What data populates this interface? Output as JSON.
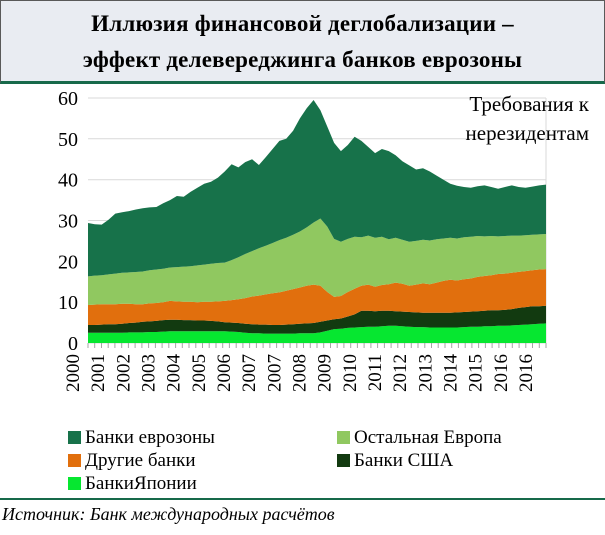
{
  "title": {
    "line1": "Иллюзия финансовой деглобализации –",
    "line2": "эффект делевереджинга банков еврозоны"
  },
  "annotation": {
    "line1": "Требования к",
    "line2": "нерезидентам"
  },
  "source": "Источник: Банк международных расчётов",
  "colors": {
    "title_bg": "#E9ECF2",
    "rule_green": "#17694A",
    "gridline": "#D9D9D9",
    "tick": "#A6A6A6"
  },
  "legend": [
    {
      "label": "Банки еврозоны",
      "color": "#17724A"
    },
    {
      "label": "Остальная Европа",
      "color": "#90C860"
    },
    {
      "label": "Другие банки",
      "color": "#E16F0D"
    },
    {
      "label": "Банки США",
      "color": "#123A10"
    },
    {
      "label": "БанкиЯпонии",
      "color": "#06E730"
    }
  ],
  "chart_data": {
    "type": "area",
    "stacked": true,
    "x_start": 2000,
    "x_step_years": 0.25,
    "x_tick_labels": [
      "2000",
      "2001",
      "2002",
      "2003",
      "2004",
      "2005",
      "2006",
      "2007",
      "2007",
      "2008",
      "2009",
      "2010",
      "2011",
      "2012",
      "2013",
      "2014",
      "2015",
      "2016",
      "2016"
    ],
    "y_ticks": [
      0,
      10,
      20,
      30,
      40,
      50,
      60
    ],
    "ylim": [
      0,
      60
    ],
    "grid": true,
    "legend_position": "bottom",
    "series": [
      {
        "name": "БанкиЯпонии",
        "color": "#06E730",
        "values": [
          2.5,
          2.5,
          2.5,
          2.5,
          2.5,
          2.5,
          2.6,
          2.6,
          2.6,
          2.7,
          2.7,
          2.8,
          2.9,
          2.9,
          2.9,
          2.9,
          2.9,
          2.9,
          2.9,
          2.9,
          2.9,
          2.8,
          2.7,
          2.5,
          2.4,
          2.4,
          2.3,
          2.3,
          2.3,
          2.3,
          2.3,
          2.4,
          2.4,
          2.4,
          2.6,
          3.0,
          3.4,
          3.5,
          3.7,
          3.8,
          3.9,
          4.0,
          4.0,
          4.1,
          4.2,
          4.2,
          4.1,
          4.0,
          3.9,
          3.9,
          3.8,
          3.8,
          3.8,
          3.8,
          3.8,
          3.9,
          4.0,
          4.0,
          4.1,
          4.1,
          4.2,
          4.2,
          4.3,
          4.4,
          4.5,
          4.6,
          4.7,
          4.8
        ]
      },
      {
        "name": "Банки США",
        "color": "#123A10",
        "values": [
          1.9,
          1.9,
          2.0,
          2.1,
          2.1,
          2.2,
          2.3,
          2.4,
          2.6,
          2.6,
          2.7,
          2.8,
          2.8,
          2.8,
          2.7,
          2.7,
          2.6,
          2.6,
          2.5,
          2.4,
          2.2,
          2.2,
          2.2,
          2.2,
          2.2,
          2.1,
          2.2,
          2.1,
          2.1,
          2.2,
          2.3,
          2.3,
          2.4,
          2.5,
          2.6,
          2.5,
          2.4,
          2.5,
          2.8,
          3.2,
          4.0,
          3.9,
          3.8,
          3.8,
          3.7,
          3.6,
          3.6,
          3.6,
          3.6,
          3.5,
          3.6,
          3.6,
          3.6,
          3.6,
          3.7,
          3.7,
          3.7,
          3.8,
          3.8,
          3.9,
          3.8,
          3.9,
          4.0,
          4.2,
          4.3,
          4.4,
          4.3,
          4.3
        ]
      },
      {
        "name": "Другие банки",
        "color": "#E16F0D",
        "values": [
          4.9,
          5.0,
          5.0,
          4.9,
          4.9,
          4.9,
          4.7,
          4.5,
          4.3,
          4.4,
          4.4,
          4.4,
          4.6,
          4.5,
          4.5,
          4.5,
          4.5,
          4.6,
          4.7,
          4.9,
          5.2,
          5.5,
          5.8,
          6.3,
          6.8,
          7.1,
          7.4,
          7.8,
          8.0,
          8.3,
          8.6,
          8.9,
          9.2,
          9.4,
          8.8,
          7.0,
          5.5,
          5.5,
          6.0,
          6.3,
          6.1,
          6.4,
          6.0,
          6.3,
          6.5,
          7.0,
          6.8,
          6.4,
          6.8,
          7.2,
          7.0,
          7.4,
          7.8,
          8.1,
          7.8,
          8.0,
          8.1,
          8.4,
          8.5,
          8.6,
          8.9,
          8.9,
          8.9,
          8.8,
          8.8,
          8.8,
          9.0,
          9.0
        ]
      },
      {
        "name": "Остальная Европа",
        "color": "#90C860",
        "values": [
          7.0,
          7.1,
          7.1,
          7.3,
          7.5,
          7.6,
          7.7,
          7.9,
          8.0,
          8.1,
          8.2,
          8.2,
          8.2,
          8.4,
          8.6,
          8.7,
          9.0,
          9.1,
          9.3,
          9.4,
          9.4,
          9.8,
          10.3,
          10.8,
          11.1,
          11.6,
          11.9,
          12.3,
          12.8,
          13.0,
          13.3,
          13.7,
          14.3,
          15.2,
          16.5,
          16.0,
          14.2,
          13.3,
          13.0,
          12.7,
          11.9,
          12.0,
          12.0,
          11.8,
          11.0,
          11.0,
          10.8,
          10.8,
          10.7,
          10.7,
          10.7,
          10.6,
          10.4,
          10.3,
          10.3,
          10.3,
          10.2,
          10.0,
          9.7,
          9.6,
          9.2,
          9.2,
          9.1,
          8.9,
          8.8,
          8.7,
          8.6,
          8.6
        ]
      },
      {
        "name": "Банки еврозоны",
        "color": "#17724A",
        "values": [
          13.1,
          12.6,
          12.4,
          13.4,
          14.7,
          14.8,
          15.0,
          15.3,
          15.5,
          15.4,
          15.3,
          16.0,
          16.5,
          17.4,
          17.1,
          18.2,
          19.0,
          19.8,
          20.1,
          20.9,
          22.3,
          23.5,
          22.0,
          22.5,
          22.5,
          20.4,
          21.7,
          23.0,
          24.3,
          24.2,
          25.5,
          27.7,
          29.2,
          30.0,
          26.5,
          24.5,
          23.5,
          22.2,
          23.0,
          24.5,
          23.6,
          21.7,
          20.7,
          21.5,
          21.6,
          20.2,
          19.2,
          18.7,
          17.5,
          17.5,
          16.9,
          15.6,
          14.4,
          13.2,
          12.9,
          12.3,
          12.0,
          12.2,
          12.5,
          12.0,
          11.7,
          12.0,
          12.3,
          11.9,
          11.6,
          11.8,
          12.0,
          12.1
        ]
      }
    ]
  }
}
